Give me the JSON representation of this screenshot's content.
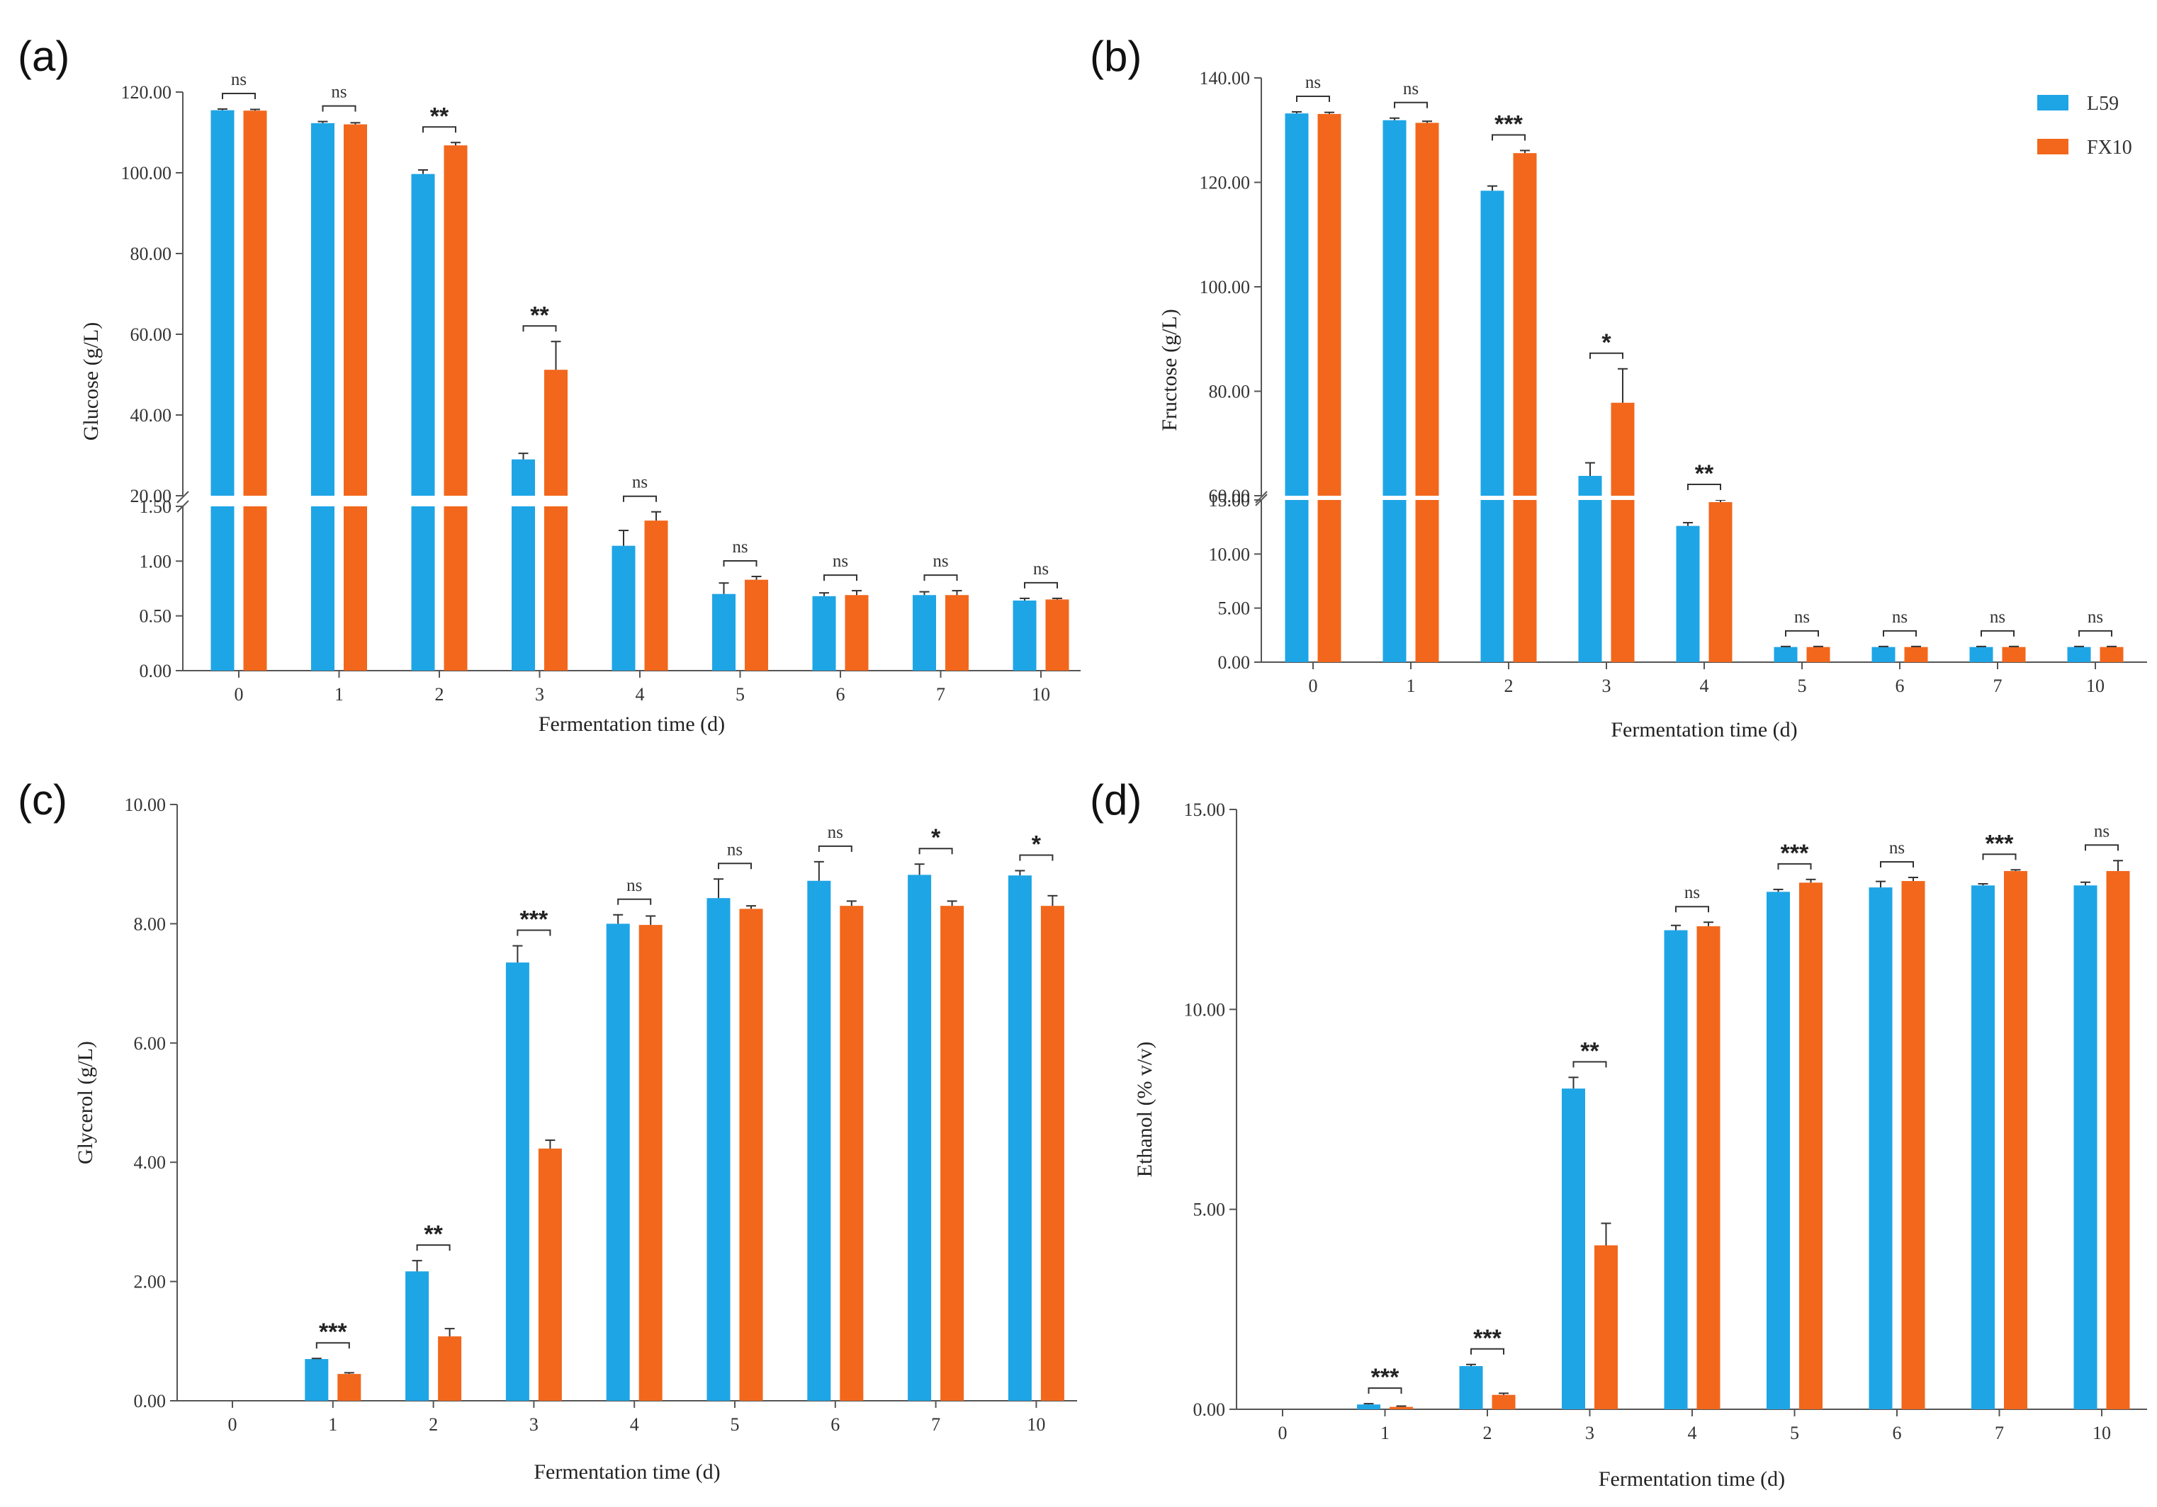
{
  "colors": {
    "L59": "#1ea5e6",
    "FX10": "#f2671c",
    "axis": "#555555"
  },
  "legend": {
    "placement": "top-right",
    "items": [
      "L59",
      "FX10"
    ]
  },
  "chart_data": [
    {
      "panel_label": "(a)",
      "type": "bar",
      "xlabel": "Fermentation time (d)",
      "ylabel": "Glucose (g/L)",
      "categories": [
        "0",
        "1",
        "2",
        "3",
        "4",
        "5",
        "6",
        "7",
        "10"
      ],
      "axis_break": {
        "lower_range": [
          0,
          1.5
        ],
        "upper_range": [
          20,
          120
        ]
      },
      "yticks_lower": [
        "0.00",
        "0.50",
        "1.00",
        "1.50"
      ],
      "yticks_upper": [
        "20.00",
        "40.00",
        "60.00",
        "80.00",
        "100.00",
        "120.00"
      ],
      "series": [
        {
          "name": "L59",
          "values": [
            115.5,
            112.3,
            99.7,
            29.0,
            1.14,
            0.7,
            0.68,
            0.69,
            0.64
          ],
          "errors": [
            0.3,
            0.4,
            1.0,
            1.5,
            0.14,
            0.1,
            0.03,
            0.03,
            0.02
          ]
        },
        {
          "name": "FX10",
          "values": [
            115.4,
            112.0,
            106.8,
            51.2,
            1.37,
            0.83,
            0.69,
            0.69,
            0.65
          ],
          "errors": [
            0.3,
            0.4,
            0.7,
            7.0,
            0.08,
            0.03,
            0.04,
            0.04,
            0.01
          ]
        }
      ],
      "significance": [
        "ns",
        "ns",
        "**",
        "**",
        "ns",
        "ns",
        "ns",
        "ns",
        "ns"
      ]
    },
    {
      "panel_label": "(b)",
      "type": "bar",
      "xlabel": "Fermentation time (d)",
      "ylabel": "Fructose (g/L)",
      "categories": [
        "0",
        "1",
        "2",
        "3",
        "4",
        "5",
        "6",
        "7",
        "10"
      ],
      "axis_break": {
        "lower_range": [
          0,
          15
        ],
        "upper_range": [
          60,
          140
        ]
      },
      "yticks_lower": [
        "0.00",
        "5.00",
        "10.00",
        "15.00"
      ],
      "yticks_upper": [
        "60.00",
        "80.00",
        "100.00",
        "120.00",
        "140.00"
      ],
      "series": [
        {
          "name": "L59",
          "values": [
            133.2,
            131.9,
            118.4,
            63.8,
            12.6,
            1.4,
            1.4,
            1.4,
            1.4
          ],
          "errors": [
            0.3,
            0.4,
            0.9,
            2.5,
            0.3,
            0.05,
            0.05,
            0.05,
            0.05
          ]
        },
        {
          "name": "FX10",
          "values": [
            133.1,
            131.4,
            125.6,
            77.8,
            14.8,
            1.4,
            1.4,
            1.4,
            1.4
          ],
          "errors": [
            0.3,
            0.3,
            0.5,
            6.5,
            0.2,
            0.05,
            0.05,
            0.05,
            0.05
          ]
        }
      ],
      "significance": [
        "ns",
        "ns",
        "***",
        "*",
        "**",
        "ns",
        "ns",
        "ns",
        "ns"
      ]
    },
    {
      "panel_label": "(c)",
      "type": "bar",
      "xlabel": "Fermentation time (d)",
      "ylabel": "Glycerol (g/L)",
      "categories": [
        "0",
        "1",
        "2",
        "3",
        "4",
        "5",
        "6",
        "7",
        "10"
      ],
      "ylim": [
        0,
        10
      ],
      "yticks": [
        "0.00",
        "2.00",
        "4.00",
        "6.00",
        "8.00",
        "10.00"
      ],
      "series": [
        {
          "name": "L59",
          "values": [
            0,
            0.7,
            2.17,
            7.35,
            8.0,
            8.43,
            8.72,
            8.82,
            8.81
          ],
          "errors": [
            0,
            0.01,
            0.18,
            0.28,
            0.15,
            0.32,
            0.32,
            0.18,
            0.08
          ]
        },
        {
          "name": "FX10",
          "values": [
            0,
            0.45,
            1.08,
            4.23,
            7.98,
            8.25,
            8.3,
            8.3,
            8.3
          ],
          "errors": [
            0,
            0.02,
            0.13,
            0.14,
            0.15,
            0.05,
            0.08,
            0.08,
            0.17
          ]
        }
      ],
      "significance": [
        "",
        "***",
        "**",
        "***",
        "ns",
        "ns",
        "ns",
        "*",
        "*"
      ]
    },
    {
      "panel_label": "(d)",
      "type": "bar",
      "xlabel": "Fermentation time (d)",
      "ylabel": "Ethanol (% v/v)",
      "categories": [
        "0",
        "1",
        "2",
        "3",
        "4",
        "5",
        "6",
        "7",
        "10"
      ],
      "ylim": [
        0,
        15
      ],
      "yticks": [
        "0.00",
        "5.00",
        "10.00",
        "15.00"
      ],
      "series": [
        {
          "name": "L59",
          "values": [
            0,
            0.12,
            1.08,
            8.02,
            11.98,
            12.94,
            13.05,
            13.1,
            13.1
          ],
          "errors": [
            0,
            0.02,
            0.04,
            0.28,
            0.12,
            0.06,
            0.15,
            0.04,
            0.08
          ]
        },
        {
          "name": "FX10",
          "values": [
            0,
            0.06,
            0.36,
            4.1,
            12.08,
            13.17,
            13.21,
            13.46,
            13.46
          ],
          "errors": [
            0,
            0.02,
            0.04,
            0.55,
            0.1,
            0.08,
            0.09,
            0.03,
            0.26
          ]
        }
      ],
      "significance": [
        "",
        "***",
        "***",
        "**",
        "ns",
        "***",
        "ns",
        "***",
        "ns"
      ]
    }
  ]
}
